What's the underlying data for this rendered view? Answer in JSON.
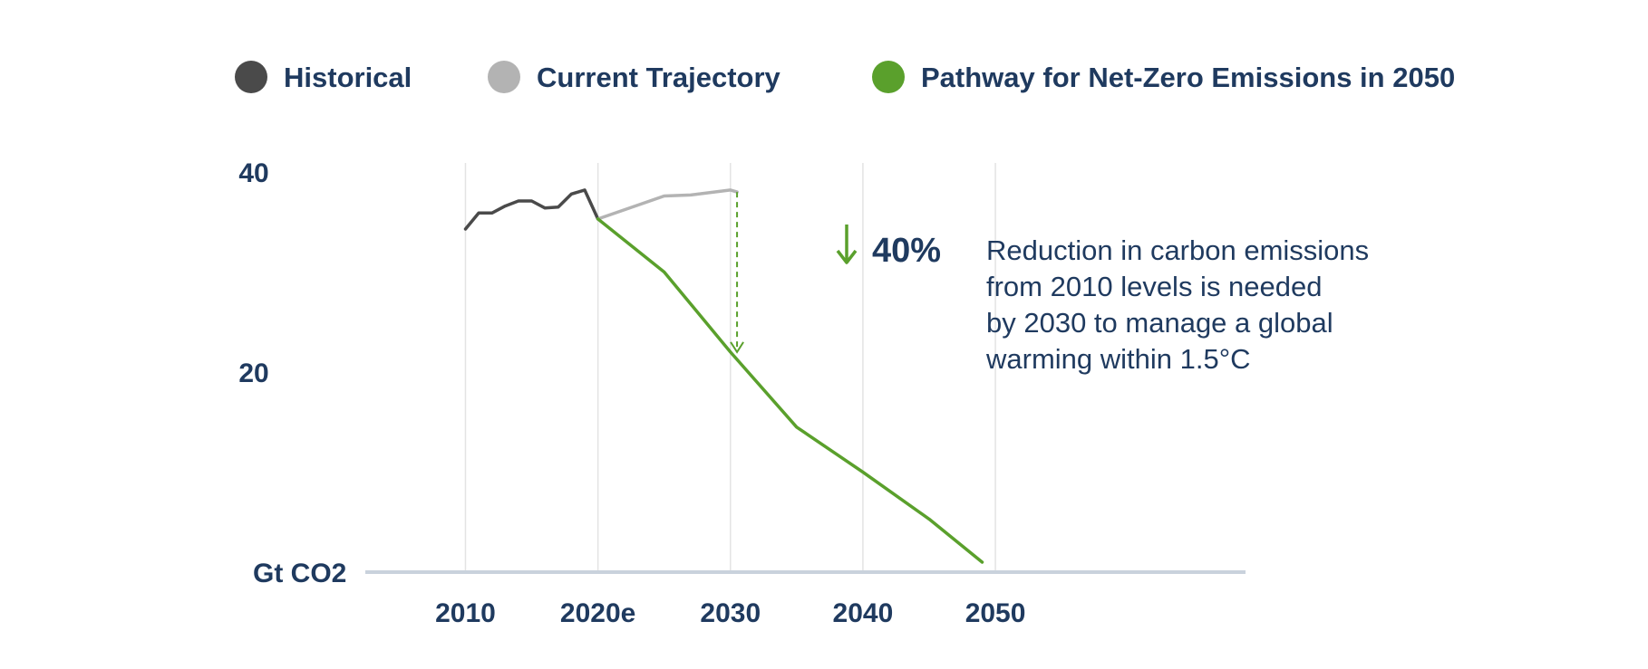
{
  "chart_data": {
    "type": "line",
    "ylabel": "Gt CO2",
    "ylim": [
      0,
      40
    ],
    "yticks": [
      40,
      20
    ],
    "xlim": [
      2006,
      2058
    ],
    "xticks": [
      {
        "value": 2010,
        "label": "2010"
      },
      {
        "value": 2020,
        "label": "2020e"
      },
      {
        "value": 2030,
        "label": "2030"
      },
      {
        "value": 2040,
        "label": "2040"
      },
      {
        "value": 2050,
        "label": "2050"
      }
    ],
    "grid": true,
    "legend_position": "top",
    "series": [
      {
        "name": "Historical",
        "color": "#4a4a4a",
        "points": [
          [
            2010,
            34.3
          ],
          [
            2011,
            35.9
          ],
          [
            2012,
            35.9
          ],
          [
            2013,
            36.6
          ],
          [
            2014,
            37.1
          ],
          [
            2015,
            37.1
          ],
          [
            2016,
            36.4
          ],
          [
            2017,
            36.5
          ],
          [
            2018,
            37.8
          ],
          [
            2019,
            38.2
          ],
          [
            2020,
            35.3
          ]
        ]
      },
      {
        "name": "Current Trajectory",
        "color": "#b3b3b3",
        "points": [
          [
            2020,
            35.3
          ],
          [
            2025,
            37.6
          ],
          [
            2027,
            37.7
          ],
          [
            2030,
            38.2
          ],
          [
            2030.5,
            38.0
          ]
        ]
      },
      {
        "name": "Pathway for Net-Zero Emissions in 2050",
        "color": "#5aa02c",
        "points": [
          [
            2020,
            35.3
          ],
          [
            2025,
            30.0
          ],
          [
            2030,
            22.0
          ],
          [
            2035,
            14.5
          ],
          [
            2040,
            10.0
          ],
          [
            2045,
            5.3
          ],
          [
            2049,
            1.0
          ]
        ]
      }
    ],
    "annotation": {
      "value": "40%",
      "text_lines": [
        "Reduction in carbon emissions",
        "from 2010 levels is needed",
        "by 2030 to manage a global",
        "warming within 1.5°C"
      ],
      "arrow_x": 2030.5,
      "arrow_from": 38.0,
      "arrow_to": 22.0,
      "arrow_icon": "down-arrow-icon",
      "color": "#5aa02c"
    }
  }
}
